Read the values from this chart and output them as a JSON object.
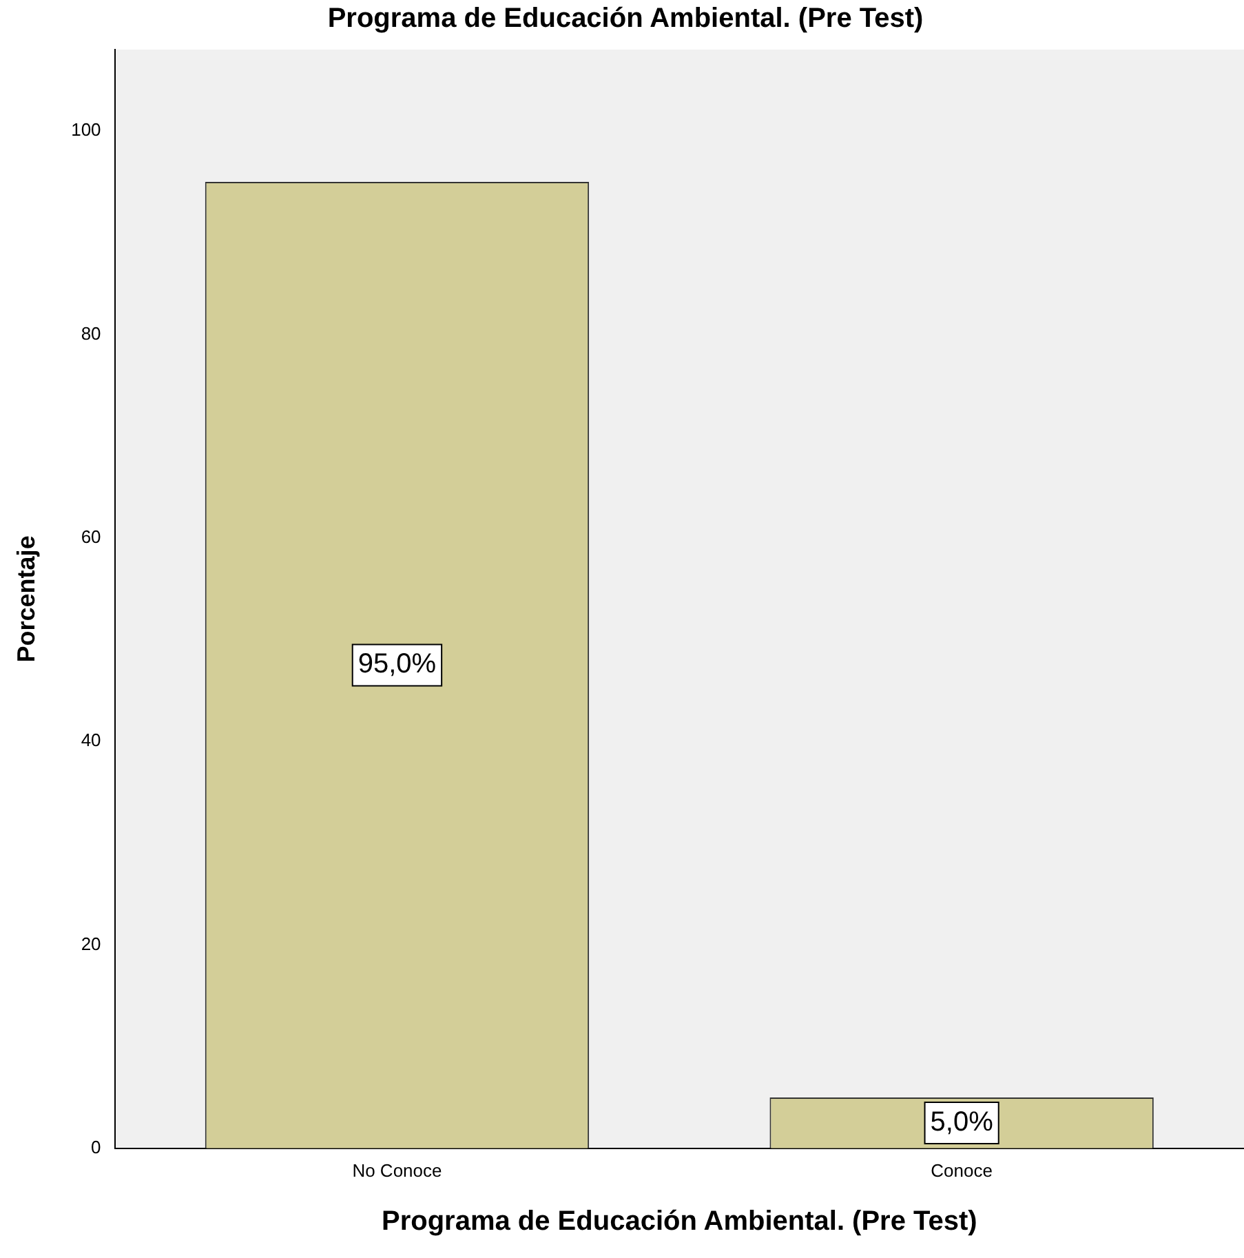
{
  "chart_data": {
    "type": "bar",
    "title": "Programa de Educación Ambiental. (Pre Test)",
    "xlabel": "Programa de Educación Ambiental. (Pre Test)",
    "ylabel": "Porcentaje",
    "categories": [
      "No Conoce",
      "Conoce"
    ],
    "values": [
      95,
      5
    ],
    "value_labels": [
      "95,0%",
      "5,0%"
    ],
    "color": "#d3ce98",
    "ylim": [
      0,
      108
    ],
    "yticks": [
      0,
      20,
      40,
      60,
      80,
      100
    ],
    "grid": false,
    "legend": false
  }
}
